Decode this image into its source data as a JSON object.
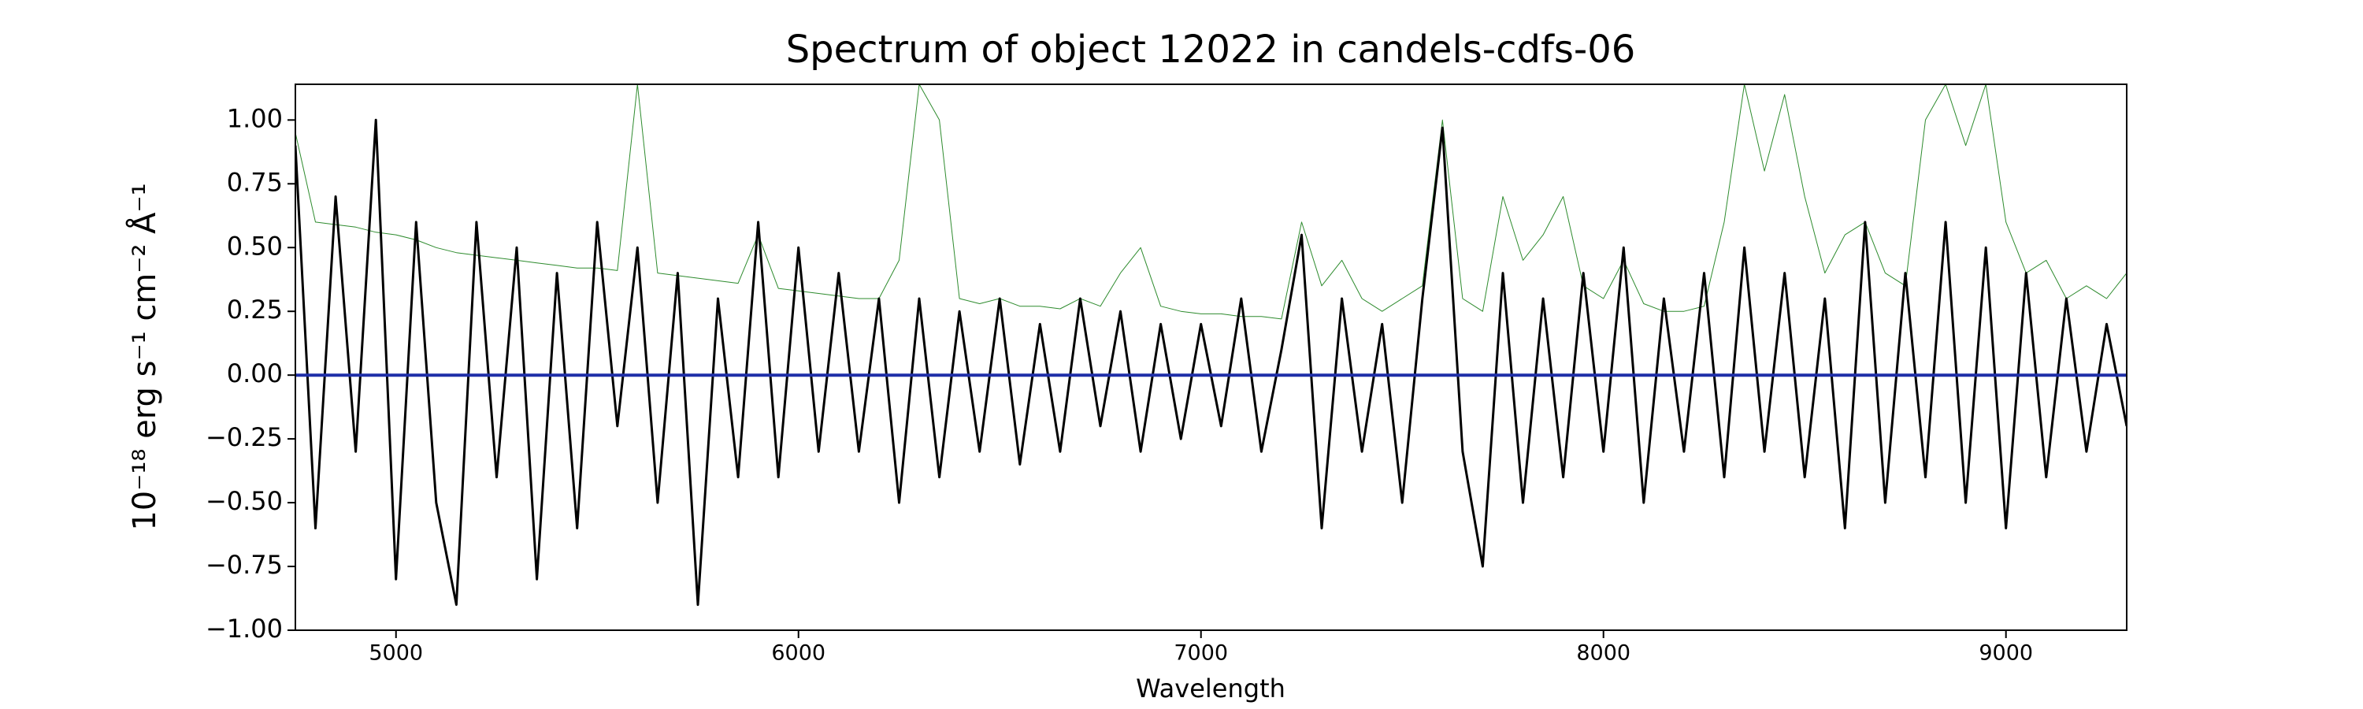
{
  "chart_data": {
    "type": "line",
    "title": "Spectrum of object 12022 in candels-cdfs-06",
    "x_label": "Wavelength",
    "y_label": "10⁻¹⁸ erg s⁻¹ cm⁻² Å⁻¹",
    "xlim": [
      4750,
      9300
    ],
    "ylim": [
      -1,
      1.14
    ],
    "xticks": [
      5000,
      6000,
      7000,
      8000,
      9000
    ],
    "yticks": [
      {
        "value": 1,
        "label": "1.00"
      },
      {
        "value": 0.75,
        "label": "0.75"
      },
      {
        "value": 0.5,
        "label": "0.50"
      },
      {
        "value": 0.25,
        "label": "0.25"
      },
      {
        "value": 0,
        "label": "0.00"
      },
      {
        "value": -0.25,
        "label": "−0.25"
      },
      {
        "value": -0.5,
        "label": "−0.50"
      },
      {
        "value": -0.75,
        "label": "−0.75"
      },
      {
        "value": -1,
        "label": "−1.00"
      }
    ],
    "x": [
      4750,
      4800,
      4850,
      4900,
      4950,
      5000,
      5050,
      5100,
      5150,
      5200,
      5250,
      5300,
      5350,
      5400,
      5450,
      5500,
      5550,
      5600,
      5650,
      5700,
      5750,
      5800,
      5850,
      5900,
      5950,
      6000,
      6050,
      6100,
      6150,
      6200,
      6250,
      6300,
      6350,
      6400,
      6450,
      6500,
      6550,
      6600,
      6650,
      6700,
      6750,
      6800,
      6850,
      6900,
      6950,
      7000,
      7050,
      7100,
      7150,
      7200,
      7250,
      7300,
      7350,
      7400,
      7450,
      7500,
      7550,
      7600,
      7650,
      7700,
      7750,
      7800,
      7850,
      7900,
      7950,
      8000,
      8050,
      8100,
      8150,
      8200,
      8250,
      8300,
      8350,
      8400,
      8450,
      8500,
      8550,
      8600,
      8650,
      8700,
      8750,
      8800,
      8850,
      8900,
      8950,
      9000,
      9050,
      9100,
      9150,
      9200,
      9250,
      9300
    ],
    "series": [
      {
        "color": "#2e8b2e",
        "width": 1,
        "values": [
          0.95,
          0.6,
          0.59,
          0.58,
          0.56,
          0.55,
          0.53,
          0.5,
          0.48,
          0.47,
          0.46,
          0.45,
          0.44,
          0.43,
          0.42,
          0.42,
          0.41,
          1.14,
          0.4,
          0.39,
          0.38,
          0.37,
          0.36,
          0.55,
          0.34,
          0.33,
          0.32,
          0.31,
          0.3,
          0.3,
          0.45,
          1.14,
          1.0,
          0.3,
          0.28,
          0.3,
          0.27,
          0.27,
          0.26,
          0.3,
          0.27,
          0.4,
          0.5,
          0.27,
          0.25,
          0.24,
          0.24,
          0.23,
          0.23,
          0.22,
          0.6,
          0.35,
          0.45,
          0.3,
          0.25,
          0.3,
          0.35,
          1.0,
          0.3,
          0.25,
          0.7,
          0.45,
          0.55,
          0.7,
          0.35,
          0.3,
          0.45,
          0.28,
          0.25,
          0.25,
          0.27,
          0.6,
          1.14,
          0.8,
          1.1,
          0.7,
          0.4,
          0.55,
          0.6,
          0.4,
          0.35,
          1.0,
          1.14,
          0.9,
          1.14,
          0.6,
          0.4,
          0.45,
          0.3,
          0.35,
          0.3,
          0.4
        ]
      },
      {
        "color": "#000000",
        "width": 3,
        "values": [
          0.9,
          -0.6,
          0.7,
          -0.3,
          1.0,
          -0.8,
          0.6,
          -0.5,
          -0.9,
          0.6,
          -0.4,
          0.5,
          -0.8,
          0.4,
          -0.6,
          0.6,
          -0.2,
          0.5,
          -0.5,
          0.4,
          -0.9,
          0.3,
          -0.4,
          0.6,
          -0.4,
          0.5,
          -0.3,
          0.4,
          -0.3,
          0.3,
          -0.5,
          0.3,
          -0.4,
          0.25,
          -0.3,
          0.3,
          -0.35,
          0.2,
          -0.3,
          0.3,
          -0.2,
          0.25,
          -0.3,
          0.2,
          -0.25,
          0.2,
          -0.2,
          0.3,
          -0.3,
          0.1,
          0.55,
          -0.6,
          0.3,
          -0.3,
          0.2,
          -0.5,
          0.3,
          0.97,
          -0.3,
          -0.75,
          0.4,
          -0.5,
          0.3,
          -0.4,
          0.4,
          -0.3,
          0.5,
          -0.5,
          0.3,
          -0.3,
          0.4,
          -0.4,
          0.5,
          -0.3,
          0.4,
          -0.4,
          0.3,
          -0.6,
          0.6,
          -0.5,
          0.4,
          -0.4,
          0.6,
          -0.5,
          0.5,
          -0.6,
          0.4,
          -0.4,
          0.3,
          -0.3,
          0.2,
          -0.2
        ]
      },
      {
        "color": "#1f2fa8",
        "width": 4,
        "x": [
          4750,
          9300
        ],
        "values": [
          0,
          0
        ]
      }
    ]
  }
}
